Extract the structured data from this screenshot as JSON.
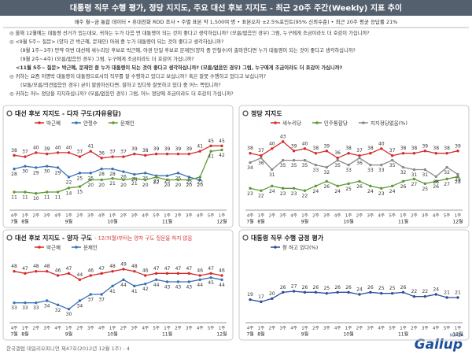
{
  "title": "대통령 직무 수행 평가, 정당 지지도, 주요 대선 후보 지지도 - 최근 20주 주간(Weekly) 지표 추이",
  "subtitle": "매주 월~금 통합 데이터 • 휴대전화 RDD 조사 • 주별 표본 약 1,500여 명 • 표본오차 ±2.5%포인트(95% 신뢰수준) • 최근 20주 평균 응답률 21%",
  "notes": [
    "◎ 올해 12월에는 대통령 선거가 있는데요, 귀하는 누가 다음 번 대통령이 되는 것이 좋다고 생각하십니까? (모름/없음인 경우) 그럼, 누구에게 조금이라도 더 호감이 가십니까?",
    "◎ <9월 5주~ 질문> (양자 간 박근혜, 문재인) 아래 중 누가 대통령이 되는 것이 좋다고 생각하십니까?",
    "(9월 1주~3주) 만약 이번 대선에 새누리당 후보로 박근혜, 야권 단일 후보로 문재인(양자 중 안철수)이 출마한다면 누가 대통령이 되는 것이 좋다고 생각하십니까?",
    "(9월 2주~4주) (모름/없음인 경우) 그럼, 누구에게 조금이라도 더 호감이 가십니까?",
    "<11월 5주~ 질문> 박근혜, 문재인 중 누가 대통령이 되는 것이 좋다고 생각하십니까? (모름/없음인 경우) 그럼, 누구에게 조금이라도 더 호감이 가십니까?",
    "◎ 귀하는 요즘 이명박 대통령이 대통령으로서의 직무를 잘 수행하고 있다고 보십니까? 혹은 잘못 수행하고 있다고 보십니까?",
    "(보통/모름/의견없음인 경우) 굳이 말씀하신다면, 잘하고 있다와 잘못하고 있다 중 어느 쪽입니까?",
    "◎ 귀하는 어느 정당을 지지하십니까? (모름/없음인 경우) 그럼, 어느 정당에 조금이라도 더 호감이 가십니까?"
  ],
  "footer": "한국갤럽 데일리오피니언 제47호(2012년 12월 1주) - 4",
  "logo": "Gallup",
  "logo_sub": "KOREA",
  "chart_data": [
    {
      "type": "line",
      "title": "대선 후보 지지도 - 다자 구도(자유응답)",
      "categories": [
        "4주",
        "1주",
        "2주",
        "3주",
        "4주",
        "1주",
        "2주",
        "3주",
        "4주",
        "1주",
        "2주",
        "3주",
        "4주",
        "5주",
        "1주",
        "2주",
        "3주",
        "4주",
        "5주",
        "1주"
      ],
      "months": [
        "7월",
        "8월",
        null,
        null,
        null,
        "9월",
        null,
        null,
        null,
        "10월",
        null,
        null,
        null,
        null,
        "11월",
        null,
        null,
        null,
        null,
        "12월"
      ],
      "ylim": [
        0,
        55
      ],
      "series": [
        {
          "name": "박근혜",
          "color": "#d42c2c",
          "values": [
            38,
            37,
            40,
            39,
            40,
            40,
            37,
            41,
            36,
            37,
            37,
            39,
            38,
            39,
            39,
            39,
            39,
            41,
            45,
            45
          ]
        },
        {
          "name": "안철수",
          "color": "#3a72b5",
          "values": [
            28,
            30,
            29,
            30,
            29,
            22,
            25,
            25,
            28,
            28,
            26,
            24,
            25,
            23,
            23,
            25,
            22,
            20,
            null,
            null
          ]
        },
        {
          "name": "문재인",
          "color": "#5f9a35",
          "values": [
            11,
            11,
            10,
            11,
            11,
            14,
            15,
            20,
            20,
            21,
            20,
            21,
            20,
            22,
            20,
            20,
            20,
            22,
            41,
            42
          ]
        }
      ]
    },
    {
      "type": "line",
      "title": "정당 지지도",
      "categories": [
        "4주",
        "1주",
        "2주",
        "3주",
        "4주",
        "1주",
        "2주",
        "3주",
        "4주",
        "1주",
        "2주",
        "3주",
        "4주",
        "5주",
        "1주",
        "2주",
        "3주",
        "4주",
        "5주",
        "1주"
      ],
      "months": [
        "7월",
        "8월",
        null,
        null,
        null,
        "9월",
        null,
        null,
        null,
        "10월",
        null,
        null,
        null,
        null,
        "11월",
        null,
        null,
        null,
        null,
        "12월"
      ],
      "ylim": [
        15,
        47
      ],
      "series": [
        {
          "name": "새누리당",
          "color": "#d42c2c",
          "values": [
            38,
            37,
            40,
            43,
            39,
            40,
            38,
            39,
            36,
            38,
            37,
            38,
            40,
            37,
            38,
            38,
            39,
            38,
            38,
            39
          ]
        },
        {
          "name": "민주통합당",
          "color": "#5f9a35",
          "values": [
            23,
            22,
            24,
            23,
            23,
            22,
            24,
            26,
            24,
            25,
            26,
            24,
            23,
            24,
            26,
            27,
            25,
            26,
            27,
            28
          ]
        },
        {
          "name": "지지정당없음(%)",
          "color": "#8a8a8a",
          "values": [
            34,
            36,
            31,
            35,
            35,
            35,
            33,
            32,
            35,
            33,
            36,
            33,
            33,
            35,
            32,
            31,
            31,
            28,
            32,
            29
          ]
        }
      ]
    },
    {
      "type": "line",
      "title": "대선 후보 지지도 - 양자 구도",
      "subtitle": "- 12/3(월)부터는 양자 구도 질문을 하지 않음",
      "categories": [
        "4주",
        "1주",
        "2주",
        "3주",
        "4주",
        "1주",
        "2주",
        "3주",
        "4주",
        "1주",
        "2주",
        "3주",
        "4주",
        "5주",
        "1주",
        "2주",
        "3주",
        "4주",
        "5주",
        "1주"
      ],
      "months": [
        "7월",
        "8월",
        null,
        null,
        null,
        "9월",
        null,
        null,
        null,
        "10월",
        null,
        null,
        null,
        null,
        "11월",
        null,
        null,
        null,
        null,
        "12월"
      ],
      "ylim": [
        25,
        55
      ],
      "series": [
        {
          "name": "박근혜",
          "color": "#d42c2c",
          "values": [
            48,
            47,
            48,
            48,
            46,
            47,
            44,
            46,
            47,
            48,
            49,
            48,
            46,
            47,
            47,
            47,
            47,
            46,
            47,
            46
          ]
        },
        {
          "name": "문재인",
          "color": "#3a72b5",
          "values": [
            33,
            33,
            33,
            34,
            32,
            30,
            34,
            37,
            37,
            41,
            44,
            41,
            42,
            44,
            43,
            43,
            43,
            44,
            45,
            44
          ]
        }
      ]
    },
    {
      "type": "line",
      "title": "대통령 직무 수행 긍정 평가",
      "categories": [
        "4주",
        "1주",
        "2주",
        "3주",
        "4주",
        "1주",
        "2주",
        "3주",
        "4주",
        "1주",
        "2주",
        "3주",
        "4주",
        "5주",
        "1주",
        "2주",
        "3주",
        "4주",
        "5주",
        "1주"
      ],
      "months": [
        "7월",
        "8월",
        null,
        null,
        null,
        "9월",
        null,
        null,
        null,
        "10월",
        null,
        null,
        null,
        null,
        "11월",
        null,
        null,
        null,
        null,
        "12월"
      ],
      "ylim": [
        0,
        60
      ],
      "series": [
        {
          "name": "잘 하고 있다(%)",
          "color": "#2b4f9b",
          "values": [
            19,
            17,
            20,
            26,
            27,
            26,
            26,
            25,
            26,
            26,
            24,
            26,
            25,
            25,
            26,
            22,
            22,
            24,
            21,
            21
          ]
        }
      ]
    }
  ]
}
